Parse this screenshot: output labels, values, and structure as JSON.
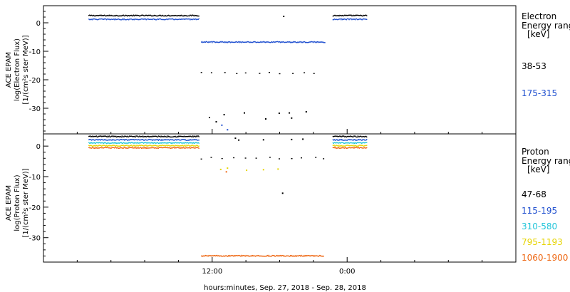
{
  "figure": {
    "xlabel": "hours:minutes, Sep. 27, 2018 - Sep. 28, 2018",
    "x_ticks": [
      {
        "hour": 12,
        "label": "12:00"
      },
      {
        "hour": 24,
        "label": "0:00"
      }
    ],
    "x_minor_hours": [
      0,
      3,
      6,
      9,
      15,
      18,
      21,
      27,
      30,
      33,
      36
    ]
  },
  "panels": {
    "electron": {
      "ylabel_1": "ACE EPAM",
      "ylabel_2": "log(Electron Flux)",
      "ylabel_3": "[1/(cm²s ster MeV)]",
      "legend_title_1": "Electron",
      "legend_title_2": "Energy range",
      "legend_unit": "[keV]"
    },
    "proton": {
      "ylabel_1": "ACE EPAM",
      "ylabel_2": "log(Proton Flux)",
      "ylabel_3": "[1/(cm²s ster MeV)]",
      "legend_title_1": "Proton",
      "legend_title_2": "Energy range",
      "legend_unit": "[keV]"
    }
  },
  "chart_data": [
    {
      "type": "scatter",
      "panel": "electron",
      "xlabel": "hours:minutes, Sep. 27, 2018 - Sep. 28, 2018",
      "ylabel": "ACE EPAM log(Electron Flux) [1/(cm²s ster MeV)]",
      "xlim": [
        -3,
        39
      ],
      "ylim": [
        -39,
        6
      ],
      "y_ticks": [
        0,
        -10,
        -20,
        -30
      ],
      "legend_placement": "right",
      "series": [
        {
          "name": "38-53",
          "color": "#000000",
          "segments": [
            {
              "x0": 1.0,
              "x1": 10.8,
              "y": 2.7
            },
            {
              "x0": 22.7,
              "x1": 25.7,
              "y": 2.7
            },
            {
              "x0": 11.0,
              "x1": 21.9,
              "y": -17.5,
              "sparse": true
            }
          ],
          "points": [
            {
              "x": 18.3,
              "y": 2.5
            },
            {
              "x": 14.8,
              "y": -31.4
            },
            {
              "x": 13.0,
              "y": -32.0
            },
            {
              "x": 17.9,
              "y": -31.5
            },
            {
              "x": 18.8,
              "y": -31.4
            },
            {
              "x": 20.3,
              "y": -31.0
            },
            {
              "x": 11.7,
              "y": -33.0
            },
            {
              "x": 16.7,
              "y": -33.5
            },
            {
              "x": 19.0,
              "y": -33.2
            },
            {
              "x": 12.3,
              "y": -34.5
            }
          ]
        },
        {
          "name": "175-315",
          "color": "#1f4fcf",
          "segments": [
            {
              "x0": 1.0,
              "x1": 10.8,
              "y": 1.4
            },
            {
              "x0": 22.7,
              "x1": 25.7,
              "y": 1.4
            },
            {
              "x0": 11.0,
              "x1": 22.0,
              "y": -6.6
            }
          ],
          "points": [
            {
              "x": 12.8,
              "y": -35.7
            },
            {
              "x": 13.3,
              "y": -37.3
            }
          ]
        }
      ]
    },
    {
      "type": "scatter",
      "panel": "proton",
      "xlabel": "hours:minutes, Sep. 27, 2018 - Sep. 28, 2018",
      "ylabel": "ACE EPAM log(Proton Flux) [1/(cm²s ster MeV)]",
      "xlim": [
        -3,
        39
      ],
      "ylim": [
        -38,
        4
      ],
      "y_ticks": [
        0,
        -10,
        -20,
        -30
      ],
      "legend_placement": "right",
      "series": [
        {
          "name": "47-68",
          "color": "#000000",
          "segments": [
            {
              "x0": 1.0,
              "x1": 10.8,
              "y": 3.3
            },
            {
              "x0": 22.7,
              "x1": 25.7,
              "y": 3.3
            },
            {
              "x0": 11.0,
              "x1": 22.0,
              "y": -3.8,
              "sparse": true
            }
          ],
          "points": [
            {
              "x": 14.0,
              "y": 2.8
            },
            {
              "x": 14.3,
              "y": 2.2
            },
            {
              "x": 16.5,
              "y": 2.3
            },
            {
              "x": 19.0,
              "y": 2.4
            },
            {
              "x": 20.0,
              "y": 2.5
            },
            {
              "x": 18.2,
              "y": -15.2
            }
          ]
        },
        {
          "name": "115-195",
          "color": "#1f4fcf",
          "segments": [
            {
              "x0": 1.0,
              "x1": 10.8,
              "y": 2.2
            },
            {
              "x0": 22.7,
              "x1": 25.7,
              "y": 2.2
            }
          ],
          "points": []
        },
        {
          "name": "310-580",
          "color": "#22c5d9",
          "segments": [
            {
              "x0": 1.0,
              "x1": 10.8,
              "y": 1.2
            },
            {
              "x0": 22.7,
              "x1": 25.7,
              "y": 1.2
            }
          ],
          "points": []
        },
        {
          "name": "795-1193",
          "color": "#e6d400",
          "segments": [
            {
              "x0": 1.0,
              "x1": 10.8,
              "y": 0.3
            },
            {
              "x0": 22.7,
              "x1": 25.7,
              "y": 0.3
            }
          ],
          "points": [
            {
              "x": 12.7,
              "y": -7.4
            },
            {
              "x": 13.3,
              "y": -7.0
            },
            {
              "x": 15.0,
              "y": -7.7
            },
            {
              "x": 16.5,
              "y": -7.5
            },
            {
              "x": 17.8,
              "y": -7.3
            }
          ]
        },
        {
          "name": "1060-1900",
          "color": "#ee6611",
          "segments": [
            {
              "x0": 1.0,
              "x1": 10.8,
              "y": -0.4
            },
            {
              "x0": 22.7,
              "x1": 25.7,
              "y": -0.4
            },
            {
              "x0": 11.0,
              "x1": 21.9,
              "y": -35.8
            }
          ],
          "points": [
            {
              "x": 13.2,
              "y": -8.2
            }
          ]
        }
      ]
    }
  ]
}
